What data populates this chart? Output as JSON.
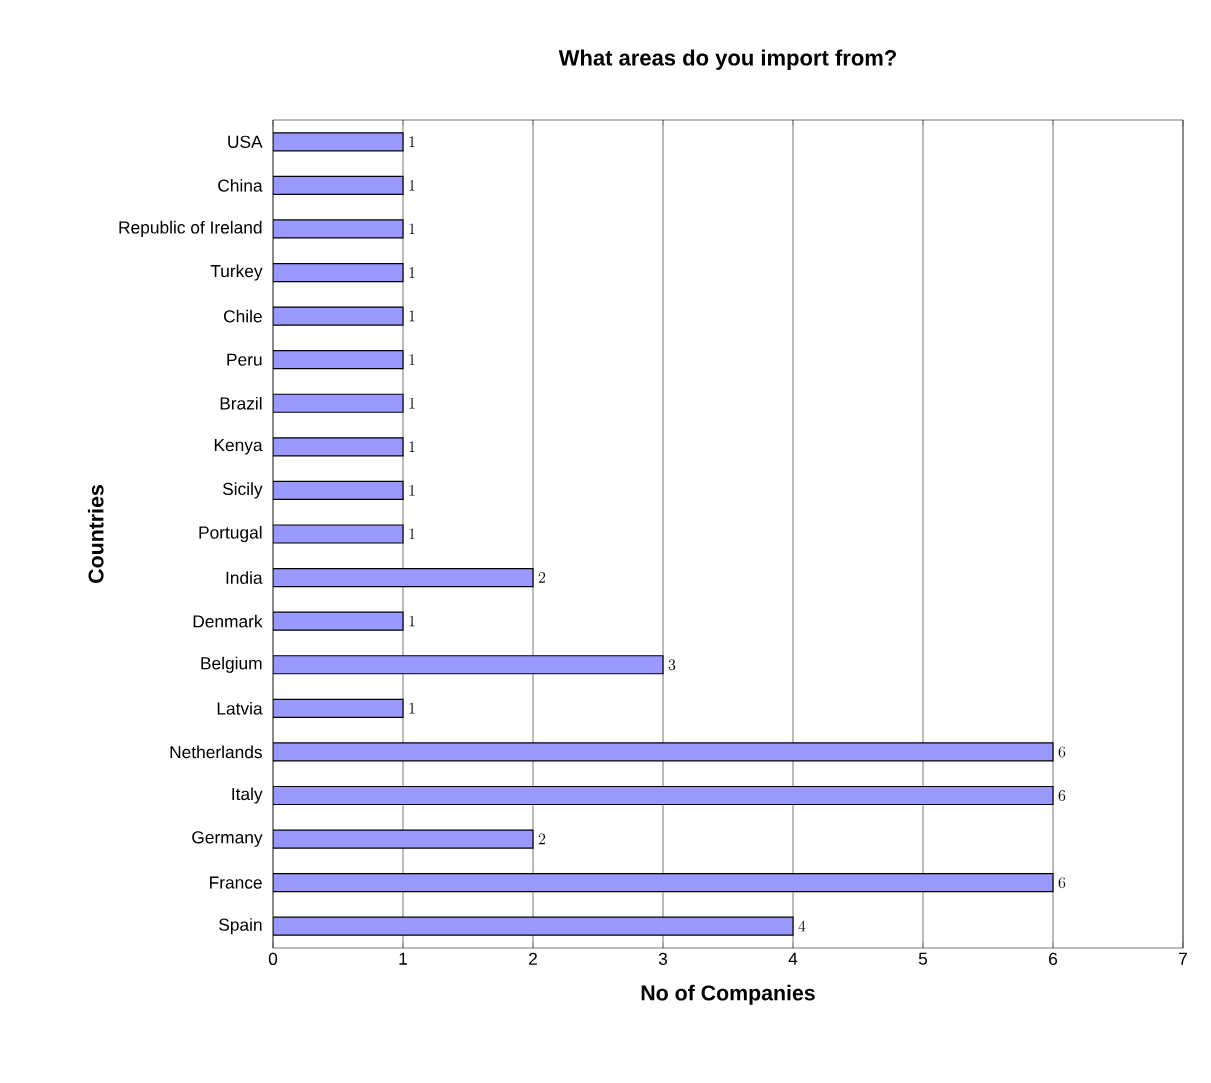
{
  "chart_data": {
    "type": "bar",
    "orientation": "horizontal",
    "title": "What areas do you import from?",
    "xlabel": "No of Companies",
    "ylabel": "Countries",
    "categories": [
      "USA",
      "China",
      "Republic of Ireland",
      "Turkey",
      "Chile",
      "Peru",
      "Brazil",
      "Kenya",
      "Sicily",
      "Portugal",
      "India",
      "Denmark",
      "Belgium",
      "Latvia",
      "Netherlands",
      "Italy",
      "Germany",
      "France",
      "Spain"
    ],
    "values": [
      1,
      1,
      1,
      1,
      1,
      1,
      1,
      1,
      1,
      1,
      2,
      1,
      3,
      1,
      6,
      6,
      2,
      6,
      4
    ],
    "color": "#9999ff",
    "xlim": [
      0,
      7
    ],
    "xticks": [
      0,
      1,
      2,
      3,
      4,
      5,
      6,
      7
    ],
    "grid": "x",
    "data_labels": true
  }
}
